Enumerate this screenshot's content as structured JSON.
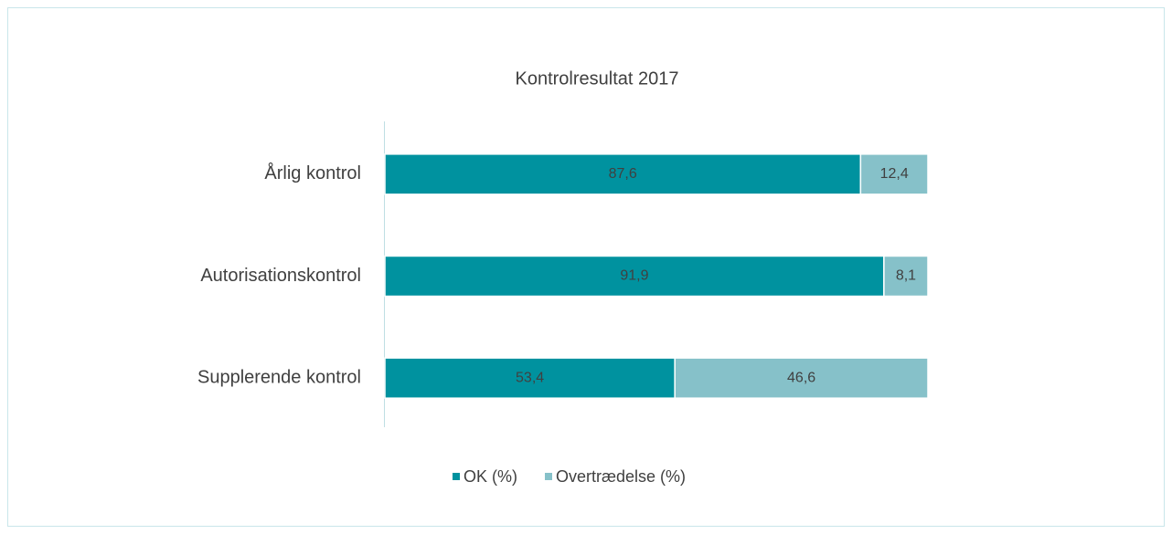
{
  "chart_data": {
    "type": "stacked-barh",
    "title": "Kontrolresultat 2017",
    "categories": [
      "Årlig kontrol",
      "Autorisationskontrol",
      "Supplerende kontrol"
    ],
    "series": [
      {
        "name": "OK (%)",
        "color": "#00929f",
        "values": [
          87.6,
          91.9,
          53.4
        ],
        "value_labels": [
          "87,6",
          "91,9",
          "53,4"
        ]
      },
      {
        "name": "Overtrædelse (%)",
        "color": "#86c1c9",
        "values": [
          12.4,
          8.1,
          46.6
        ],
        "value_labels": [
          "12,4",
          "8,1",
          "46,6"
        ]
      }
    ],
    "xlim": [
      0,
      100
    ],
    "legend": "bottom"
  }
}
